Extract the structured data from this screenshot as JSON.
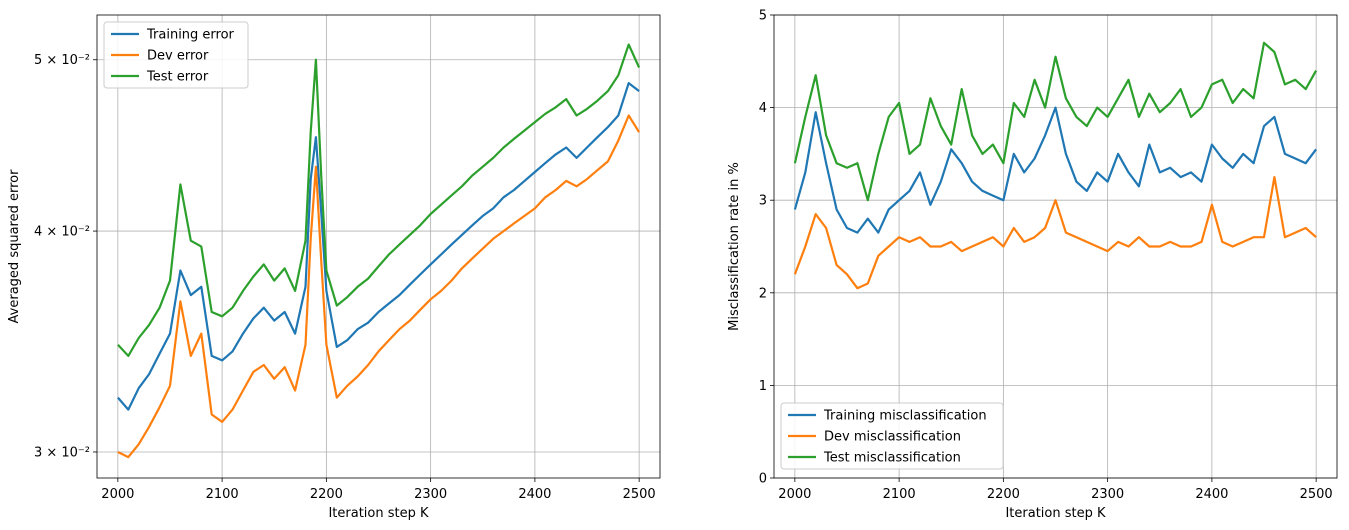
{
  "chart_data": [
    {
      "type": "line",
      "xlabel": "Iteration step K",
      "ylabel": "Averaged squared error",
      "yscale": "log",
      "xlim": [
        1980,
        2520
      ],
      "ylim": [
        0.029,
        0.053
      ],
      "xticks": [
        2000,
        2100,
        2200,
        2300,
        2400,
        2500
      ],
      "yticks": [
        {
          "value": 0.03,
          "label": "3 × 10⁻²"
        },
        {
          "value": 0.04,
          "label": "4 × 10⁻²"
        },
        {
          "value": 0.05,
          "label": "5 × 10⁻²"
        }
      ],
      "grid": true,
      "legend_position": "upper-left",
      "x": [
        2000,
        2010,
        2020,
        2030,
        2040,
        2050,
        2060,
        2070,
        2080,
        2090,
        2100,
        2110,
        2120,
        2130,
        2140,
        2150,
        2160,
        2170,
        2180,
        2185,
        2190,
        2195,
        2200,
        2210,
        2220,
        2230,
        2240,
        2250,
        2260,
        2270,
        2280,
        2290,
        2300,
        2310,
        2320,
        2330,
        2340,
        2350,
        2360,
        2370,
        2380,
        2390,
        2400,
        2410,
        2420,
        2430,
        2440,
        2450,
        2460,
        2470,
        2480,
        2490,
        2500
      ],
      "series": [
        {
          "name": "Training error",
          "color": "#1f77b4",
          "values": [
            0.0322,
            0.0317,
            0.0326,
            0.0332,
            0.0341,
            0.035,
            0.038,
            0.0368,
            0.0372,
            0.034,
            0.0338,
            0.0342,
            0.035,
            0.0357,
            0.0362,
            0.0356,
            0.036,
            0.035,
            0.0372,
            0.0428,
            0.0452,
            0.041,
            0.037,
            0.0344,
            0.0347,
            0.0352,
            0.0355,
            0.036,
            0.0364,
            0.0368,
            0.0373,
            0.0378,
            0.0383,
            0.0388,
            0.0393,
            0.0398,
            0.0403,
            0.0408,
            0.0412,
            0.0418,
            0.0422,
            0.0427,
            0.0432,
            0.0437,
            0.0442,
            0.0446,
            0.044,
            0.0446,
            0.0452,
            0.0458,
            0.0465,
            0.0485,
            0.048
          ]
        },
        {
          "name": "Dev error",
          "color": "#ff7f0e",
          "values": [
            0.03,
            0.0298,
            0.0303,
            0.031,
            0.0318,
            0.0327,
            0.0365,
            0.034,
            0.035,
            0.0315,
            0.0312,
            0.0317,
            0.0325,
            0.0333,
            0.0336,
            0.033,
            0.0335,
            0.0325,
            0.0345,
            0.0396,
            0.0435,
            0.0385,
            0.0345,
            0.0322,
            0.0327,
            0.0331,
            0.0336,
            0.0342,
            0.0347,
            0.0352,
            0.0356,
            0.0361,
            0.0366,
            0.037,
            0.0375,
            0.0381,
            0.0386,
            0.0391,
            0.0396,
            0.04,
            0.0404,
            0.0408,
            0.0412,
            0.0418,
            0.0422,
            0.0427,
            0.0424,
            0.0428,
            0.0433,
            0.0438,
            0.045,
            0.0465,
            0.0455
          ]
        },
        {
          "name": "Test error",
          "color": "#2ca02c",
          "values": [
            0.0345,
            0.034,
            0.0348,
            0.0354,
            0.0362,
            0.0375,
            0.0425,
            0.0395,
            0.0392,
            0.036,
            0.0358,
            0.0362,
            0.037,
            0.0377,
            0.0383,
            0.0375,
            0.0381,
            0.037,
            0.0395,
            0.0455,
            0.05,
            0.043,
            0.038,
            0.0363,
            0.0367,
            0.0372,
            0.0376,
            0.0382,
            0.0388,
            0.0393,
            0.0398,
            0.0403,
            0.0409,
            0.0414,
            0.0419,
            0.0424,
            0.043,
            0.0435,
            0.044,
            0.0446,
            0.0451,
            0.0456,
            0.0461,
            0.0466,
            0.047,
            0.0475,
            0.0465,
            0.0469,
            0.0474,
            0.048,
            0.049,
            0.051,
            0.0495
          ]
        }
      ]
    },
    {
      "type": "line",
      "xlabel": "Iteration step K",
      "ylabel": "Misclassification rate in %",
      "yscale": "linear",
      "xlim": [
        1980,
        2520
      ],
      "ylim": [
        0,
        5
      ],
      "xticks": [
        2000,
        2100,
        2200,
        2300,
        2400,
        2500
      ],
      "yticks": [
        {
          "value": 0,
          "label": "0"
        },
        {
          "value": 1,
          "label": "1"
        },
        {
          "value": 2,
          "label": "2"
        },
        {
          "value": 3,
          "label": "3"
        },
        {
          "value": 4,
          "label": "4"
        },
        {
          "value": 5,
          "label": "5"
        }
      ],
      "grid": true,
      "legend_position": "lower-left",
      "x": [
        2000,
        2010,
        2020,
        2030,
        2040,
        2050,
        2060,
        2070,
        2080,
        2090,
        2100,
        2110,
        2120,
        2130,
        2140,
        2150,
        2160,
        2170,
        2180,
        2190,
        2200,
        2210,
        2220,
        2230,
        2240,
        2250,
        2260,
        2270,
        2280,
        2290,
        2300,
        2310,
        2320,
        2330,
        2340,
        2350,
        2360,
        2370,
        2380,
        2390,
        2400,
        2410,
        2420,
        2430,
        2440,
        2450,
        2460,
        2470,
        2480,
        2490,
        2500
      ],
      "series": [
        {
          "name": "Training misclassification",
          "color": "#1f77b4",
          "values": [
            2.9,
            3.3,
            3.95,
            3.4,
            2.9,
            2.7,
            2.65,
            2.8,
            2.65,
            2.9,
            3.0,
            3.1,
            3.3,
            2.95,
            3.2,
            3.55,
            3.4,
            3.2,
            3.1,
            3.05,
            3.0,
            3.5,
            3.3,
            3.45,
            3.7,
            4.0,
            3.5,
            3.2,
            3.1,
            3.3,
            3.2,
            3.5,
            3.3,
            3.15,
            3.6,
            3.3,
            3.35,
            3.25,
            3.3,
            3.2,
            3.6,
            3.45,
            3.35,
            3.5,
            3.4,
            3.8,
            3.9,
            3.5,
            3.45,
            3.4,
            3.55
          ]
        },
        {
          "name": "Dev misclassification",
          "color": "#ff7f0e",
          "values": [
            2.2,
            2.5,
            2.85,
            2.7,
            2.3,
            2.2,
            2.05,
            2.1,
            2.4,
            2.5,
            2.6,
            2.55,
            2.6,
            2.5,
            2.5,
            2.55,
            2.45,
            2.5,
            2.55,
            2.6,
            2.5,
            2.7,
            2.55,
            2.6,
            2.7,
            3.0,
            2.65,
            2.6,
            2.55,
            2.5,
            2.45,
            2.55,
            2.5,
            2.6,
            2.5,
            2.5,
            2.55,
            2.5,
            2.5,
            2.55,
            2.95,
            2.55,
            2.5,
            2.55,
            2.6,
            2.6,
            3.25,
            2.6,
            2.65,
            2.7,
            2.6
          ]
        },
        {
          "name": "Test misclassification",
          "color": "#2ca02c",
          "values": [
            3.4,
            3.9,
            4.35,
            3.7,
            3.4,
            3.35,
            3.4,
            3.0,
            3.5,
            3.9,
            4.05,
            3.5,
            3.6,
            4.1,
            3.8,
            3.6,
            4.2,
            3.7,
            3.5,
            3.6,
            3.4,
            4.05,
            3.9,
            4.3,
            4.0,
            4.55,
            4.1,
            3.9,
            3.8,
            4.0,
            3.9,
            4.1,
            4.3,
            3.9,
            4.15,
            3.95,
            4.05,
            4.2,
            3.9,
            4.0,
            4.25,
            4.3,
            4.05,
            4.2,
            4.1,
            4.7,
            4.6,
            4.25,
            4.3,
            4.2,
            4.4
          ]
        }
      ]
    }
  ]
}
